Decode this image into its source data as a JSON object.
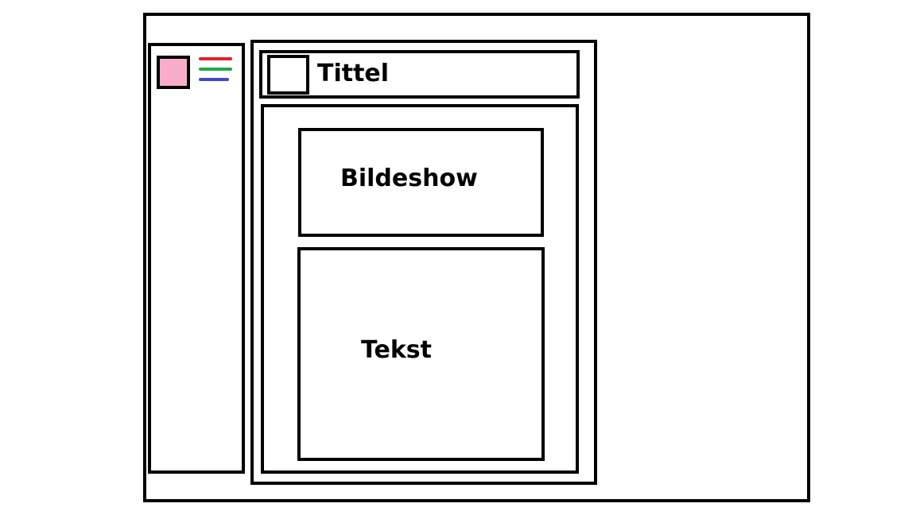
{
  "header": {
    "title": "Tittel"
  },
  "content": {
    "slideshow_label": "Bildeshow",
    "text_label": "Tekst"
  },
  "sidebar": {
    "logo_color": "#f7adc8",
    "menu_icon": "hamburger-menu-icon",
    "menu_line_colors": [
      "#e0202a",
      "#22a845",
      "#3f48cc"
    ]
  }
}
